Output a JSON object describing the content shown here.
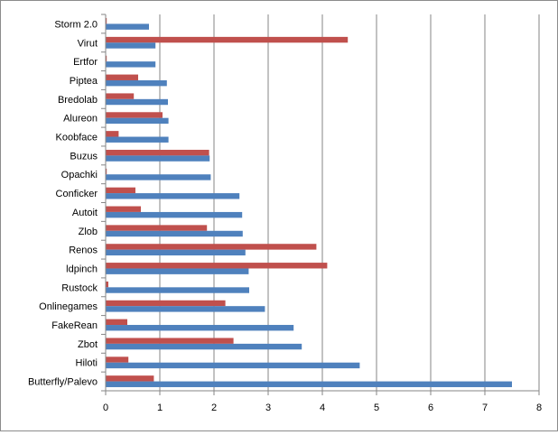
{
  "chart_data": {
    "type": "bar",
    "orientation": "horizontal",
    "title": "",
    "xlabel": "",
    "ylabel": "",
    "xlim": [
      0,
      8
    ],
    "x_ticks": [
      0,
      1,
      2,
      3,
      4,
      5,
      6,
      7,
      8
    ],
    "grid": "vertical",
    "legend": "none",
    "categories": [
      "Storm 2.0",
      "Virut",
      "Ertfor",
      "Piptea",
      "Bredolab",
      "Alureon",
      "Koobface",
      "Buzus",
      "Opachki",
      "Conficker",
      "Autoit",
      "Zlob",
      "Renos",
      "ldpinch",
      "Rustock",
      "Onlinegames",
      "FakeRean",
      "Zbot",
      "Hiloti",
      "Butterfly/Palevo"
    ],
    "series": [
      {
        "color": "#4f81bd",
        "values": [
          0.8,
          0.92,
          0.92,
          1.13,
          1.15,
          1.16,
          1.16,
          1.92,
          1.94,
          2.47,
          2.52,
          2.53,
          2.58,
          2.64,
          2.65,
          2.94,
          3.47,
          3.62,
          4.69,
          7.5
        ]
      },
      {
        "color": "#c0504d",
        "values": [
          0.02,
          4.47,
          0.02,
          0.6,
          0.52,
          1.05,
          0.24,
          1.91,
          0.02,
          0.55,
          0.65,
          1.87,
          3.89,
          4.09,
          0.05,
          2.21,
          0.4,
          2.36,
          0.42,
          0.89
        ]
      }
    ]
  }
}
